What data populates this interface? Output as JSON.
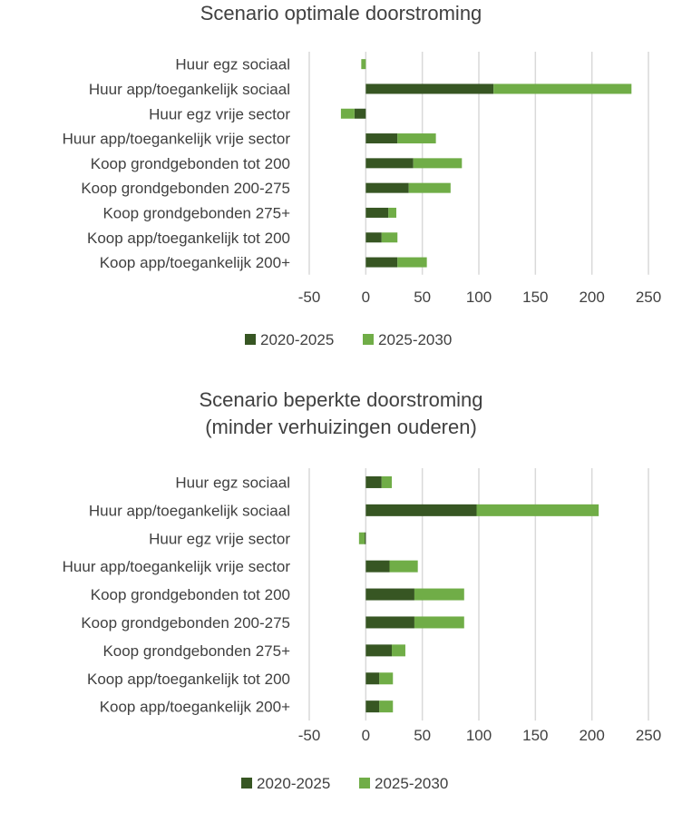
{
  "colors": {
    "series1": "#375623",
    "series2": "#70ad47",
    "grid": "#d9d9d9",
    "text": "#404040"
  },
  "chart_data": [
    {
      "type": "bar",
      "orientation": "horizontal",
      "stacked": true,
      "title_lines": [
        "Scenario optimale doorstroming"
      ],
      "categories": [
        "Huur egz sociaal",
        "Huur app/toegankelijk sociaal",
        "Huur egz vrije sector",
        "Huur app/toegankelijk vrije sector",
        "Koop grondgebonden tot 200",
        "Koop grondgebonden 200-275",
        "Koop grondgebonden 275+",
        "Koop app/toegankelijk tot 200",
        "Koop app/toegankelijk 200+"
      ],
      "series": [
        {
          "name": "2020-2025",
          "values": [
            0,
            113,
            -10,
            28,
            42,
            38,
            20,
            14,
            28
          ]
        },
        {
          "name": "2025-2030",
          "values": [
            -4,
            122,
            -12,
            34,
            43,
            37,
            7,
            14,
            26
          ]
        }
      ],
      "xlim": [
        -50,
        250
      ],
      "xticks": [
        -50,
        0,
        50,
        100,
        150,
        200,
        250
      ],
      "grid": true,
      "legend": "bottom"
    },
    {
      "type": "bar",
      "orientation": "horizontal",
      "stacked": true,
      "title_lines": [
        "Scenario beperkte doorstroming",
        "(minder verhuizingen ouderen)"
      ],
      "categories": [
        "Huur egz sociaal",
        "Huur app/toegankelijk sociaal",
        "Huur egz vrije sector",
        "Huur app/toegankelijk vrije sector",
        "Koop grondgebonden tot 200",
        "Koop grondgebonden 200-275",
        "Koop grondgebonden 275+",
        "Koop app/toegankelijk tot 200",
        "Koop app/toegankelijk 200+"
      ],
      "series": [
        {
          "name": "2020-2025",
          "values": [
            14,
            98,
            -1,
            21,
            43,
            43,
            23,
            12,
            12
          ]
        },
        {
          "name": "2025-2030",
          "values": [
            9,
            108,
            -5,
            25,
            44,
            44,
            12,
            12,
            12
          ]
        }
      ],
      "xlim": [
        -50,
        250
      ],
      "xticks": [
        -50,
        0,
        50,
        100,
        150,
        200,
        250
      ],
      "grid": true,
      "legend": "bottom"
    }
  ]
}
